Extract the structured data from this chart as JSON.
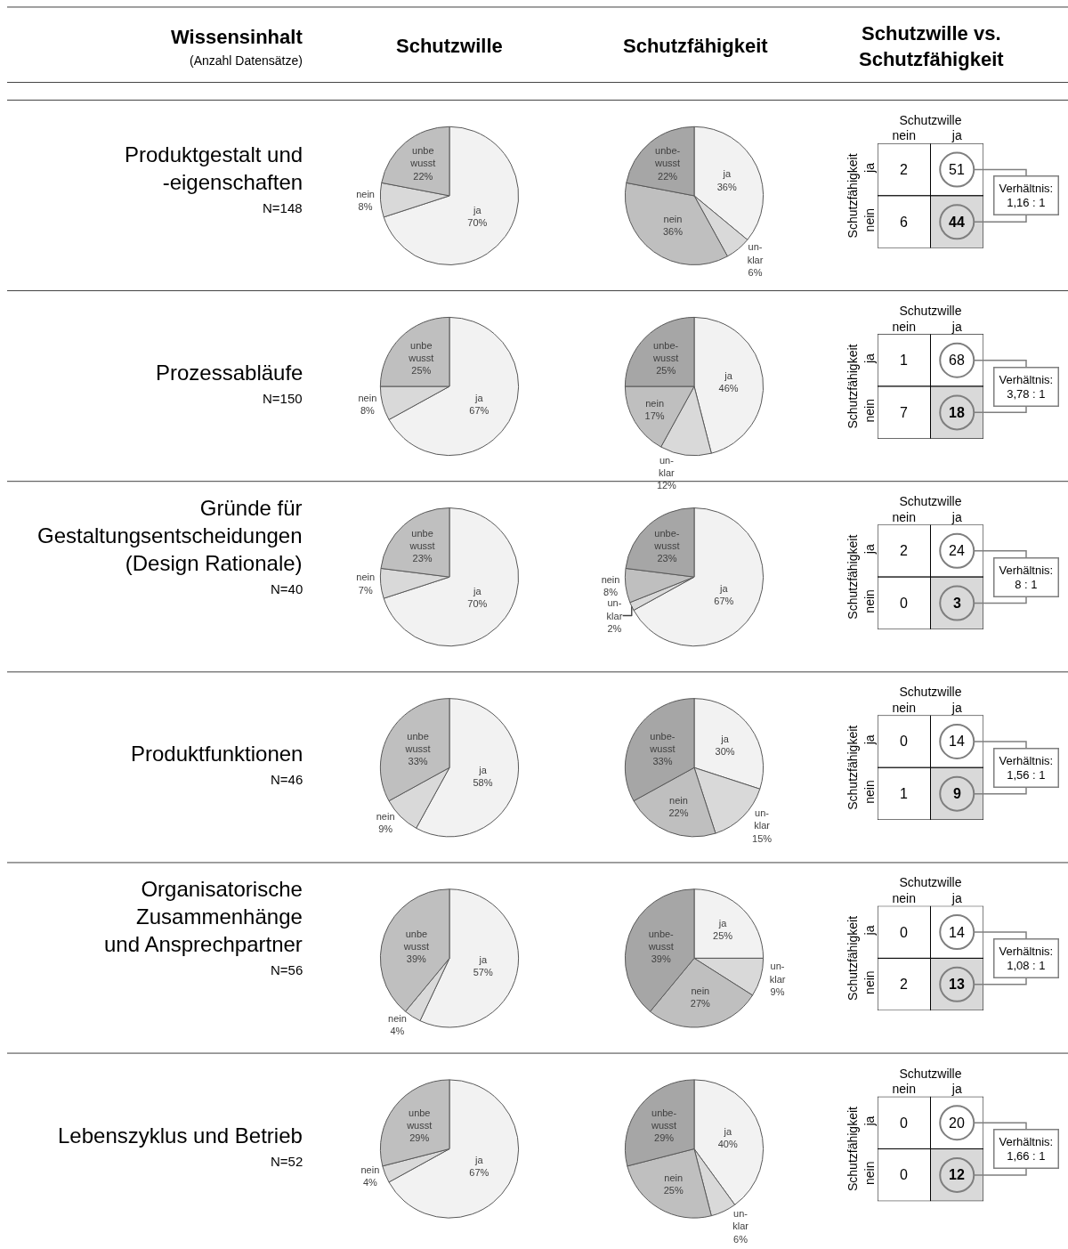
{
  "chart_data": [
    {
      "type": "other",
      "title": "Wissensinhalt",
      "subtitle": "(Anzahl Datensätze)",
      "annotations": [
        "Schutzwille",
        "Schutzfähigkeit",
        "Schutzwille vs.\nSchutzfähigkeit"
      ]
    },
    {
      "type": "other",
      "title": "Produktgestalt und\n-eigenschaften",
      "subtitle": "N=148"
    },
    {
      "type": "pie",
      "categories": [
        "ja",
        "nein",
        "unbe\nwusst"
      ],
      "values": [
        70,
        8,
        22
      ],
      "value_labels": [
        "70%",
        "8%",
        "22%"
      ],
      "colors": [
        "#f2f2f2",
        "#d9d9d9",
        "#bfbfbf"
      ]
    },
    {
      "type": "pie",
      "categories": [
        "ja",
        "un-\nklar",
        "nein",
        "unbe-\nwusst"
      ],
      "values": [
        36,
        6,
        36,
        22
      ],
      "value_labels": [
        "36%",
        "6%",
        "36%",
        "22%"
      ],
      "colors": [
        "#f2f2f2",
        "#d9d9d9",
        "#bfbfbf",
        "#a6a6a6"
      ]
    },
    {
      "type": "heatmap",
      "xlabel": "Schutzwille",
      "ylabel": "Schutzfähigkeit",
      "categories": [
        "nein",
        "ja"
      ],
      "y_categories": [
        "ja",
        "nein"
      ],
      "cells": [
        [
          2,
          51
        ],
        [
          6,
          44
        ]
      ],
      "data_labels": true,
      "colors": [
        [
          "#ffffff",
          "#ffffff"
        ],
        [
          "#ffffff",
          "#d9d9d9"
        ]
      ],
      "marker": "circle",
      "annotations": [
        "Verhältnis:\n1,16 : 1"
      ]
    },
    {
      "type": "other",
      "title": "Prozessabläufe",
      "subtitle": "N=150"
    },
    {
      "type": "pie",
      "categories": [
        "ja",
        "nein",
        "unbe\nwusst"
      ],
      "values": [
        67,
        8,
        25
      ],
      "value_labels": [
        "67%",
        "8%",
        "25%"
      ],
      "colors": [
        "#f2f2f2",
        "#d9d9d9",
        "#bfbfbf"
      ]
    },
    {
      "type": "pie",
      "categories": [
        "ja",
        "un-\nklar",
        "nein",
        "unbe-\nwusst"
      ],
      "values": [
        46,
        12,
        17,
        25
      ],
      "value_labels": [
        "46%",
        "12%",
        "17%",
        "25%"
      ],
      "colors": [
        "#f2f2f2",
        "#d9d9d9",
        "#bfbfbf",
        "#a6a6a6"
      ]
    },
    {
      "type": "heatmap",
      "xlabel": "Schutzwille",
      "ylabel": "Schutzfähigkeit",
      "categories": [
        "nein",
        "ja"
      ],
      "y_categories": [
        "ja",
        "nein"
      ],
      "cells": [
        [
          1,
          68
        ],
        [
          7,
          18
        ]
      ],
      "data_labels": true,
      "colors": [
        [
          "#ffffff",
          "#ffffff"
        ],
        [
          "#ffffff",
          "#d9d9d9"
        ]
      ],
      "marker": "circle",
      "annotations": [
        "Verhältnis:\n3,78 : 1"
      ]
    },
    {
      "type": "other",
      "title": "Gründe für\nGestaltungsentscheidungen\n(Design Rationale)",
      "subtitle": "N=40"
    },
    {
      "type": "pie",
      "categories": [
        "ja",
        "nein",
        "unbe\nwusst"
      ],
      "values": [
        70,
        7,
        23
      ],
      "value_labels": [
        "70%",
        "7%",
        "23%"
      ],
      "colors": [
        "#f2f2f2",
        "#d9d9d9",
        "#bfbfbf"
      ]
    },
    {
      "type": "pie",
      "categories": [
        "ja",
        "un-\nklar",
        "nein",
        "unbe-\nwusst"
      ],
      "values": [
        67,
        2,
        8,
        23
      ],
      "value_labels": [
        "67%",
        "2%",
        "8%",
        "23%"
      ],
      "colors": [
        "#f2f2f2",
        "#d9d9d9",
        "#bfbfbf",
        "#a6a6a6"
      ]
    },
    {
      "type": "heatmap",
      "xlabel": "Schutzwille",
      "ylabel": "Schutzfähigkeit",
      "categories": [
        "nein",
        "ja"
      ],
      "y_categories": [
        "ja",
        "nein"
      ],
      "cells": [
        [
          2,
          24
        ],
        [
          0,
          3
        ]
      ],
      "data_labels": true,
      "colors": [
        [
          "#ffffff",
          "#ffffff"
        ],
        [
          "#ffffff",
          "#d9d9d9"
        ]
      ],
      "marker": "circle",
      "annotations": [
        "Verhältnis:\n8 : 1"
      ]
    },
    {
      "type": "other",
      "title": "Produktfunktionen",
      "subtitle": "N=46"
    },
    {
      "type": "pie",
      "categories": [
        "ja",
        "nein",
        "unbe\nwusst"
      ],
      "values": [
        58,
        9,
        33
      ],
      "value_labels": [
        "58%",
        "9%",
        "33%"
      ],
      "colors": [
        "#f2f2f2",
        "#d9d9d9",
        "#bfbfbf"
      ]
    },
    {
      "type": "pie",
      "categories": [
        "ja",
        "un-\nklar",
        "nein",
        "unbe-\nwusst"
      ],
      "values": [
        30,
        15,
        22,
        33
      ],
      "value_labels": [
        "30%",
        "15%",
        "22%",
        "33%"
      ],
      "colors": [
        "#f2f2f2",
        "#d9d9d9",
        "#bfbfbf",
        "#a6a6a6"
      ]
    },
    {
      "type": "heatmap",
      "xlabel": "Schutzwille",
      "ylabel": "Schutzfähigkeit",
      "categories": [
        "nein",
        "ja"
      ],
      "y_categories": [
        "ja",
        "nein"
      ],
      "cells": [
        [
          0,
          14
        ],
        [
          1,
          9
        ]
      ],
      "data_labels": true,
      "colors": [
        [
          "#ffffff",
          "#ffffff"
        ],
        [
          "#ffffff",
          "#d9d9d9"
        ]
      ],
      "marker": "circle",
      "annotations": [
        "Verhältnis:\n1,56 : 1"
      ]
    },
    {
      "type": "other",
      "title": "Organisatorische\nZusammenhänge\nund Ansprechpartner",
      "subtitle": "N=56"
    },
    {
      "type": "pie",
      "categories": [
        "ja",
        "nein",
        "unbe\nwusst"
      ],
      "values": [
        57,
        4,
        39
      ],
      "value_labels": [
        "57%",
        "4%",
        "39%"
      ],
      "colors": [
        "#f2f2f2",
        "#d9d9d9",
        "#bfbfbf"
      ]
    },
    {
      "type": "pie",
      "categories": [
        "ja",
        "un-\nklar",
        "nein",
        "unbe-\nwusst"
      ],
      "values": [
        25,
        9,
        27,
        39
      ],
      "value_labels": [
        "25%",
        "9%",
        "27%",
        "39%"
      ],
      "colors": [
        "#f2f2f2",
        "#d9d9d9",
        "#bfbfbf",
        "#a6a6a6"
      ]
    },
    {
      "type": "heatmap",
      "xlabel": "Schutzwille",
      "ylabel": "Schutzfähigkeit",
      "categories": [
        "nein",
        "ja"
      ],
      "y_categories": [
        "ja",
        "nein"
      ],
      "cells": [
        [
          0,
          14
        ],
        [
          2,
          13
        ]
      ],
      "data_labels": true,
      "colors": [
        [
          "#ffffff",
          "#ffffff"
        ],
        [
          "#ffffff",
          "#d9d9d9"
        ]
      ],
      "marker": "circle",
      "annotations": [
        "Verhältnis:\n1,08 : 1"
      ]
    },
    {
      "type": "other",
      "title": "Lebenszyklus und Betrieb",
      "subtitle": "N=52"
    },
    {
      "type": "pie",
      "categories": [
        "ja",
        "nein",
        "unbe\nwusst"
      ],
      "values": [
        67,
        4,
        29
      ],
      "value_labels": [
        "67%",
        "4%",
        "29%"
      ],
      "colors": [
        "#f2f2f2",
        "#d9d9d9",
        "#bfbfbf"
      ]
    },
    {
      "type": "pie",
      "categories": [
        "ja",
        "un-\nklar",
        "nein",
        "unbe-\nwusst"
      ],
      "values": [
        40,
        6,
        25,
        29
      ],
      "value_labels": [
        "40%",
        "6%",
        "25%",
        "29%"
      ],
      "colors": [
        "#f2f2f2",
        "#d9d9d9",
        "#bfbfbf",
        "#a6a6a6"
      ]
    },
    {
      "type": "heatmap",
      "xlabel": "Schutzwille",
      "ylabel": "Schutzfähigkeit",
      "categories": [
        "nein",
        "ja"
      ],
      "y_categories": [
        "ja",
        "nein"
      ],
      "cells": [
        [
          0,
          20
        ],
        [
          0,
          12
        ]
      ],
      "data_labels": true,
      "colors": [
        [
          "#ffffff",
          "#ffffff"
        ],
        [
          "#ffffff",
          "#d9d9d9"
        ]
      ],
      "marker": "circle",
      "annotations": [
        "Verhältnis:\n1,66 : 1"
      ]
    }
  ]
}
